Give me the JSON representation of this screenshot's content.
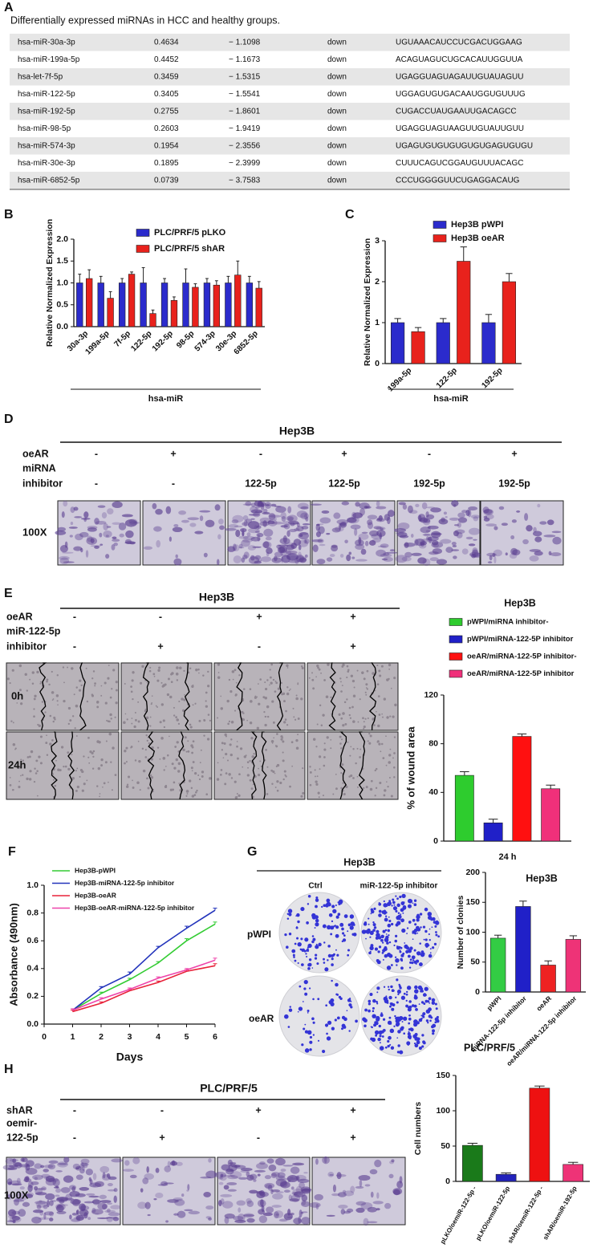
{
  "panel_labels": [
    "A",
    "B",
    "C",
    "D",
    "E",
    "F",
    "G",
    "H"
  ],
  "table": {
    "title": "Differentially expressed miRNAs in HCC and healthy groups.",
    "rows": [
      [
        "hsa-miR-30a-3p",
        "0.4634",
        "− 1.1098",
        "down",
        "UGUAAACAUCCUCGACUGGAAG"
      ],
      [
        "hsa-miR-199a-5p",
        "0.4452",
        "− 1.1673",
        "down",
        "ACAGUAGUCUGCACAUUGGUUA"
      ],
      [
        "hsa-let-7f-5p",
        "0.3459",
        "− 1.5315",
        "down",
        "UGAGGUAGUAGAUUGUAUAGUU"
      ],
      [
        "hsa-miR-122-5p",
        "0.3405",
        "− 1.5541",
        "down",
        "UGGAGUGUGACAAUGGUGUUUG"
      ],
      [
        "hsa-miR-192-5p",
        "0.2755",
        "− 1.8601",
        "down",
        "CUGACCUAUGAAUUGACAGCC"
      ],
      [
        "hsa-miR-98-5p",
        "0.2603",
        "− 1.9419",
        "down",
        "UGAGGUAGUAAGUUGUAUUGUU"
      ],
      [
        "hsa-miR-574-3p",
        "0.1954",
        "− 2.3556",
        "down",
        "UGAGUGUGUGUGUGUGAGUGUGU"
      ],
      [
        "hsa-miR-30e-3p",
        "0.1895",
        "− 2.3999",
        "down",
        "CUUUCAGUCGGAUGUUUACAGC"
      ],
      [
        "hsa-miR-6852-5p",
        "0.0739",
        "− 3.7583",
        "down",
        "CCCUGGGGUUCUGAGGACAUG"
      ]
    ]
  },
  "panel_d": {
    "header": "Hep3B",
    "row_labels": [
      [
        "oeAR"
      ],
      [
        "miRNA",
        "inhibitor"
      ]
    ],
    "rows": [
      [
        "-",
        "+",
        "-",
        "+",
        "-",
        "+"
      ],
      [
        "-",
        "-",
        "122-5p",
        "122-5p",
        "192-5p",
        "192-5p"
      ]
    ],
    "magnification": "100X"
  },
  "panel_e": {
    "header": "Hep3B",
    "row_labels": [
      [
        "oeAR"
      ],
      [
        "miR-122-5p",
        "inhibitor"
      ]
    ],
    "rows": [
      [
        "-",
        "-",
        "+",
        "+"
      ],
      [
        "-",
        "+",
        "-",
        "+"
      ]
    ],
    "time_labels": [
      "0h",
      "24h"
    ]
  },
  "panel_g": {
    "header": "Hep3B",
    "column_labels": [
      "Ctrl",
      "miR-122-5p inhibitor"
    ],
    "row_labels": [
      "pWPI",
      "oeAR"
    ]
  },
  "panel_h": {
    "header": "PLC/PRF/5",
    "row_labels": [
      [
        "shAR"
      ],
      [
        "oemir-",
        "122-5p"
      ]
    ],
    "rows": [
      [
        "-",
        "-",
        "+",
        "+"
      ],
      [
        "-",
        "+",
        "-",
        "+"
      ]
    ],
    "magnification": "100X"
  },
  "chart_data": [
    {
      "type": "bar",
      "ylabel": "Relative Normalized Expression",
      "xlabel": "hsa-miR",
      "categories": [
        "30a-3p",
        "199a-5p",
        "7f-5p",
        "122-5p",
        "192-5p",
        "98-5p",
        "574-3p",
        "30e-3p",
        "6852-5p"
      ],
      "series": [
        {
          "name": "PLC/PRF/5 pLKO",
          "color": "#2b2bcc",
          "values": [
            1,
            1,
            1,
            1,
            1,
            1,
            1,
            1,
            1
          ],
          "errors": [
            0.2,
            0.15,
            0.1,
            0.35,
            0.1,
            0.32,
            0.1,
            0.15,
            0.15
          ]
        },
        {
          "name": "PLC/PRF/5 shAR",
          "color": "#e8221c",
          "values": [
            1.1,
            0.65,
            1.2,
            0.3,
            0.6,
            0.9,
            0.95,
            1.18,
            0.88
          ],
          "errors": [
            0.2,
            0.15,
            0.05,
            0.08,
            0.08,
            0.08,
            0.1,
            0.32,
            0.15
          ]
        }
      ],
      "ylim": [
        0,
        2
      ],
      "yticks": [
        {
          "value": 0,
          "label": "0.0"
        },
        0.5,
        {
          "value": 1,
          "label": "1.0"
        },
        1.5,
        {
          "value": 2,
          "label": "2.0"
        }
      ]
    },
    {
      "type": "bar",
      "ylabel": "Relative Normalized Expression",
      "xlabel": "hsa-miR",
      "categories": [
        "199a-5p",
        "122-5p",
        "192-5p"
      ],
      "series": [
        {
          "name": "Hep3B pWPI",
          "color": "#2b2bcc",
          "values": [
            1,
            1,
            1
          ],
          "errors": [
            0.1,
            0.1,
            0.2
          ]
        },
        {
          "name": "Hep3B oeAR",
          "color": "#e8221c",
          "values": [
            0.78,
            2.5,
            2.0
          ],
          "errors": [
            0.1,
            0.35,
            0.2
          ]
        }
      ],
      "ylim": [
        0,
        3
      ],
      "yticks": [
        0,
        1,
        2,
        3
      ]
    },
    {
      "type": "bar",
      "title": "Hep3B",
      "ylabel": "% of wound area",
      "categories": [
        "24 h"
      ],
      "series": [
        {
          "name": "pWPI/miRNA inhibitor-",
          "color": "#2ecc2e",
          "values": [
            54
          ],
          "errors": [
            3
          ]
        },
        {
          "name": "pWPI/miRNA-122-5P inhibitor",
          "color": "#2020c8",
          "values": [
            15
          ],
          "errors": [
            3
          ]
        },
        {
          "name": "oeAR/miRNA-122-5P inhibitor-",
          "color": "#ff1010",
          "values": [
            86
          ],
          "errors": [
            2
          ]
        },
        {
          "name": "oeAR/miRNA-122-5P inhibitor",
          "color": "#f0307a",
          "values": [
            43
          ],
          "errors": [
            3
          ]
        }
      ],
      "ylim": [
        0,
        120
      ],
      "yticks": [
        0,
        40,
        80,
        120
      ]
    },
    {
      "type": "line",
      "xlabel": "Days",
      "ylabel": "Absorbance (490nm)",
      "x": [
        1,
        2,
        3,
        4,
        5,
        6
      ],
      "series": [
        {
          "name": "Hep3B-pWPI",
          "color": "#33cc33",
          "values": [
            0.1,
            0.22,
            0.32,
            0.44,
            0.6,
            0.72
          ],
          "errors": [
            0.01,
            0.01,
            0.01,
            0.01,
            0.015,
            0.015
          ]
        },
        {
          "name": "Hep3B-miRNA-122-5p inhibitor",
          "color": "#2233bb",
          "values": [
            0.1,
            0.26,
            0.36,
            0.55,
            0.69,
            0.82
          ],
          "errors": [
            0.01,
            0.01,
            0.015,
            0.01,
            0.015,
            0.015
          ]
        },
        {
          "name": "Hep3B-oeAR",
          "color": "#e8223a",
          "values": [
            0.09,
            0.15,
            0.24,
            0.3,
            0.38,
            0.42
          ],
          "errors": [
            0.01,
            0.01,
            0.01,
            0.01,
            0.01,
            0.015
          ]
        },
        {
          "name": "Hep3B-oeAR-miRNA-122-5p inhibitor",
          "color": "#ee44aa",
          "values": [
            0.1,
            0.18,
            0.25,
            0.33,
            0.39,
            0.46
          ],
          "errors": [
            0.01,
            0.01,
            0.01,
            0.01,
            0.01,
            0.015
          ]
        }
      ],
      "xlim": [
        0,
        6
      ],
      "xticks": [
        0,
        1,
        2,
        3,
        4,
        5,
        6
      ],
      "ylim": [
        0,
        1
      ],
      "yticks": [
        {
          "value": 0,
          "label": "0.0"
        },
        0.2,
        0.4,
        0.6,
        0.8,
        {
          "value": 1,
          "label": "1.0"
        }
      ]
    },
    {
      "type": "bar",
      "title": "Hep3B",
      "ylabel": "Number of clonies",
      "categories": [
        "pWPI",
        "miRNA-122-5p inhibitor",
        "oeAR",
        "oeAR/miRNA-122-5p inhibitor"
      ],
      "values": [
        90,
        143,
        45,
        88
      ],
      "errors": [
        5,
        9,
        7,
        6
      ],
      "colors": [
        "#33cc44",
        "#2020c8",
        "#ee2222",
        "#ee3377"
      ],
      "ylim": [
        0,
        200
      ],
      "yticks": [
        0,
        50,
        100,
        150,
        200
      ]
    },
    {
      "type": "bar",
      "title": "PLC/PRF/5",
      "ylabel": "Cell numbers",
      "categories": [
        "pLKO/oemiR-122-5p -",
        "pLKO/oemiR-122-5p",
        "shAR/oemiR-122-5p -",
        "shAR/oemiR-192-5p"
      ],
      "values": [
        51,
        10,
        132,
        24
      ],
      "errors": [
        3,
        2,
        3,
        3
      ],
      "colors": [
        "#1a7a1a",
        "#2222bb",
        "#ee1111",
        "#ee3377"
      ],
      "ylim": [
        0,
        150
      ],
      "yticks": [
        0,
        50,
        100,
        150
      ]
    }
  ]
}
